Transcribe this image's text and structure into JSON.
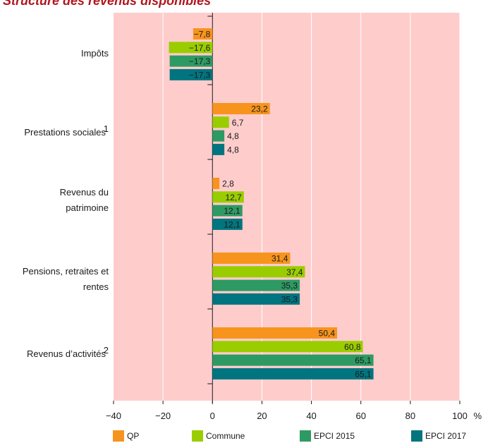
{
  "chart_data": {
    "type": "bar",
    "orientation": "horizontal",
    "title": "Structure des revenus disponibles",
    "x_unit": "%",
    "xlim": [
      -40,
      100
    ],
    "x_ticks": [
      -40,
      -20,
      0,
      20,
      40,
      60,
      80,
      100
    ],
    "x_tick_labels": [
      "−40",
      "−20",
      "0",
      "20",
      "40",
      "60",
      "80",
      "100"
    ],
    "grid": true,
    "legend_position": "bottom",
    "categories": [
      {
        "lines": [
          "Impôts"
        ],
        "sup": ""
      },
      {
        "lines": [
          "Prestations sociales"
        ],
        "sup": "1"
      },
      {
        "lines": [
          "Revenus du",
          "patrimoine"
        ],
        "sup": ""
      },
      {
        "lines": [
          "Pensions, retraites et",
          "rentes"
        ],
        "sup": ""
      },
      {
        "lines": [
          "Revenus d’activités"
        ],
        "sup": "2"
      }
    ],
    "series": [
      {
        "name": "QP",
        "color": "#f7941d",
        "values": [
          -7.8,
          23.2,
          2.8,
          31.4,
          50.4
        ],
        "labels": [
          "−7,8",
          "23,2",
          "2,8",
          "31,4",
          "50,4"
        ]
      },
      {
        "name": "Commune",
        "color": "#9acd00",
        "values": [
          -17.6,
          6.7,
          12.7,
          37.4,
          60.8
        ],
        "labels": [
          "−17,6",
          "6,7",
          "12,7",
          "37,4",
          "60,8"
        ]
      },
      {
        "name": "EPCI 2015",
        "color": "#2e9a63",
        "values": [
          -17.3,
          4.8,
          12.1,
          35.3,
          65.1
        ],
        "labels": [
          "−17,3",
          "4,8",
          "12,1",
          "35,3",
          "65,1"
        ]
      },
      {
        "name": "EPCI 2017",
        "color": "#00757f",
        "values": [
          -17.3,
          4.8,
          12.1,
          35.3,
          65.1
        ],
        "labels": [
          "−17,3",
          "4,8",
          "12,1",
          "35,3",
          "65,1"
        ]
      }
    ],
    "colors": {
      "plot_background": "#ffcccc",
      "grid": "#ffffff",
      "title": "#b0161e"
    }
  }
}
